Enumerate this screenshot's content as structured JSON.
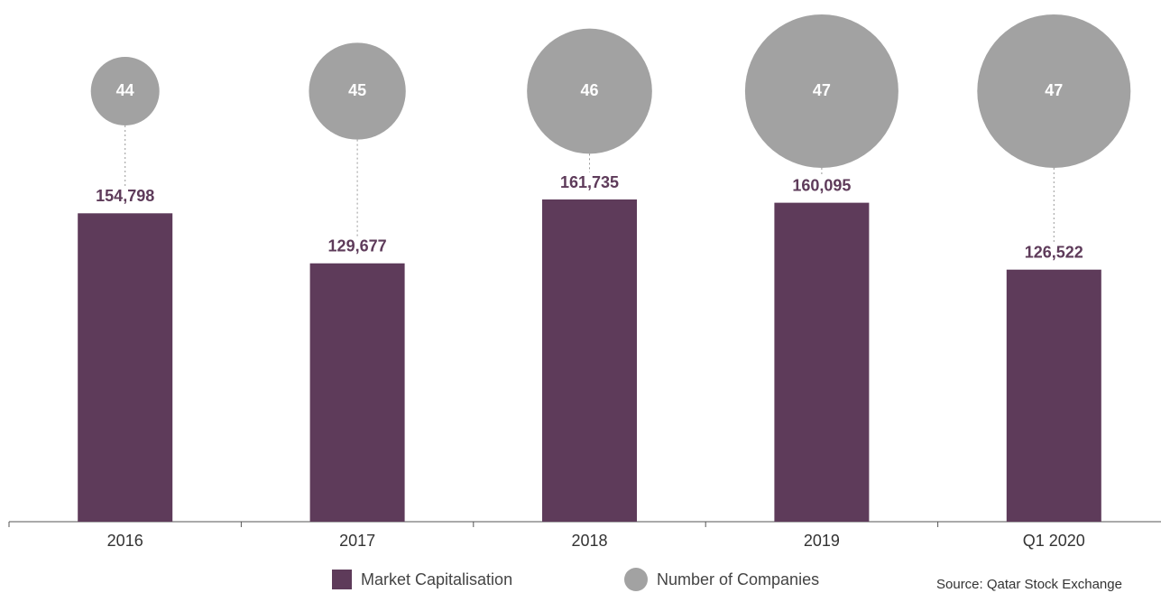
{
  "chart_data": {
    "type": "bar-bubble",
    "categories": [
      "2016",
      "2017",
      "2018",
      "2019",
      "Q1 2020"
    ],
    "series": [
      {
        "name": "Market Capitalisation",
        "color": "#5e3b5a",
        "values": [
          154798,
          129677,
          161735,
          160095,
          126522
        ],
        "value_labels": [
          "154,798",
          "129,677",
          "161,735",
          "160,095",
          "126,522"
        ]
      },
      {
        "name": "Number of Companies",
        "color": "#a2a2a2",
        "values": [
          44,
          45,
          46,
          47,
          47
        ]
      }
    ],
    "source": "Source: Qatar Stock Exchange"
  }
}
